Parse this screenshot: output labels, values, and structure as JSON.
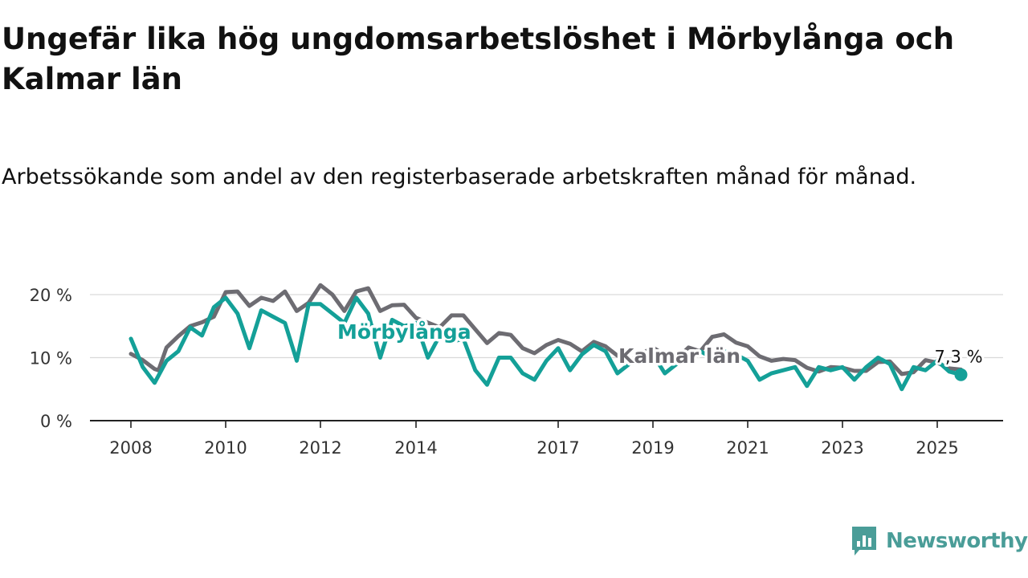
{
  "header": {
    "title": "Ungefär lika hög ungdomsarbetslöshet i Mörbylånga och Kalmar län",
    "subtitle": "Arbetssökande som andel av den registerbaserade arbetskraften månad för månad."
  },
  "brand": {
    "name": "Newsworthy",
    "icon": "newsworthy-logo-icon",
    "color": "#4a9d98"
  },
  "chart_data": {
    "type": "line",
    "xlabel": "",
    "ylabel": "",
    "x_start": "2008-01",
    "x_end": "2025-07",
    "ylim": [
      0,
      22
    ],
    "grid": true,
    "legend": "inline labels",
    "y_ticks": [
      {
        "value": 0,
        "label": "0 %"
      },
      {
        "value": 10,
        "label": "10 %"
      },
      {
        "value": 20,
        "label": "20 %"
      }
    ],
    "x_ticks": [
      {
        "year": 2008,
        "label": "2008"
      },
      {
        "year": 2010,
        "label": "2010"
      },
      {
        "year": 2012,
        "label": "2012"
      },
      {
        "year": 2014,
        "label": "2014"
      },
      {
        "year": 2017,
        "label": "2017"
      },
      {
        "year": 2019,
        "label": "2019"
      },
      {
        "year": 2021,
        "label": "2021"
      },
      {
        "year": 2023,
        "label": "2023"
      },
      {
        "year": 2025,
        "label": "2025"
      }
    ],
    "series": [
      {
        "name": "Kalmar län",
        "color": "#6d6c72",
        "points": [
          [
            "2008-01",
            10.6
          ],
          [
            "2008-04",
            9.6
          ],
          [
            "2008-07",
            8.2
          ],
          [
            "2008-08",
            8.0
          ],
          [
            "2008-10",
            11.6
          ],
          [
            "2009-01",
            13.4
          ],
          [
            "2009-04",
            15.0
          ],
          [
            "2009-07",
            15.6
          ],
          [
            "2009-10",
            16.5
          ],
          [
            "2010-01",
            20.4
          ],
          [
            "2010-04",
            20.5
          ],
          [
            "2010-07",
            18.2
          ],
          [
            "2010-10",
            19.5
          ],
          [
            "2011-01",
            19.0
          ],
          [
            "2011-04",
            20.5
          ],
          [
            "2011-07",
            17.4
          ],
          [
            "2011-10",
            18.7
          ],
          [
            "2012-01",
            21.5
          ],
          [
            "2012-04",
            20.0
          ],
          [
            "2012-07",
            17.4
          ],
          [
            "2012-10",
            20.5
          ],
          [
            "2013-01",
            21.0
          ],
          [
            "2013-04",
            17.4
          ],
          [
            "2013-07",
            18.3
          ],
          [
            "2013-10",
            18.4
          ],
          [
            "2014-01",
            16.3
          ],
          [
            "2014-07",
            14.8
          ],
          [
            "2014-10",
            16.7
          ],
          [
            "2015-01",
            16.7
          ],
          [
            "2015-04",
            14.5
          ],
          [
            "2015-07",
            12.3
          ],
          [
            "2015-10",
            13.9
          ],
          [
            "2016-01",
            13.6
          ],
          [
            "2016-04",
            11.5
          ],
          [
            "2016-07",
            10.7
          ],
          [
            "2016-10",
            12.0
          ],
          [
            "2017-01",
            12.8
          ],
          [
            "2017-04",
            12.2
          ],
          [
            "2017-07",
            11.0
          ],
          [
            "2017-10",
            12.5
          ],
          [
            "2018-01",
            11.8
          ],
          [
            "2018-04",
            10.3
          ],
          [
            "2018-07",
            9.5
          ],
          [
            "2018-10",
            10.6
          ],
          [
            "2019-01",
            11.6
          ],
          [
            "2019-04",
            10.4
          ],
          [
            "2019-07",
            9.8
          ],
          [
            "2019-10",
            11.6
          ],
          [
            "2020-01",
            11.0
          ],
          [
            "2020-04",
            13.3
          ],
          [
            "2020-07",
            13.7
          ],
          [
            "2020-10",
            12.4
          ],
          [
            "2021-01",
            11.8
          ],
          [
            "2021-04",
            10.2
          ],
          [
            "2021-07",
            9.5
          ],
          [
            "2021-10",
            9.8
          ],
          [
            "2022-01",
            9.6
          ],
          [
            "2022-04",
            8.4
          ],
          [
            "2022-07",
            7.8
          ],
          [
            "2022-10",
            8.5
          ],
          [
            "2023-01",
            8.4
          ],
          [
            "2023-04",
            7.9
          ],
          [
            "2023-07",
            7.9
          ],
          [
            "2023-10",
            9.3
          ],
          [
            "2024-01",
            9.4
          ],
          [
            "2024-04",
            7.4
          ],
          [
            "2024-07",
            7.7
          ],
          [
            "2024-10",
            9.6
          ],
          [
            "2025-01",
            9.2
          ],
          [
            "2025-04",
            8.3
          ],
          [
            "2025-07",
            8.1
          ]
        ]
      },
      {
        "name": "Mörbylånga",
        "color": "#14a098",
        "points": [
          [
            "2008-01",
            13.0
          ],
          [
            "2008-04",
            8.5
          ],
          [
            "2008-07",
            6.0
          ],
          [
            "2008-10",
            9.5
          ],
          [
            "2009-01",
            11.0
          ],
          [
            "2009-04",
            14.8
          ],
          [
            "2009-07",
            13.5
          ],
          [
            "2009-10",
            18.0
          ],
          [
            "2010-01",
            19.5
          ],
          [
            "2010-04",
            17.0
          ],
          [
            "2010-07",
            11.5
          ],
          [
            "2010-10",
            17.5
          ],
          [
            "2011-01",
            16.5
          ],
          [
            "2011-04",
            15.5
          ],
          [
            "2011-07",
            9.5
          ],
          [
            "2011-10",
            18.5
          ],
          [
            "2012-01",
            18.5
          ],
          [
            "2012-04",
            17.0
          ],
          [
            "2012-07",
            15.5
          ],
          [
            "2012-10",
            19.5
          ],
          [
            "2013-01",
            17.0
          ],
          [
            "2013-04",
            10.0
          ],
          [
            "2013-07",
            16.0
          ],
          [
            "2013-10",
            15.0
          ],
          [
            "2014-01",
            15.5
          ],
          [
            "2014-04",
            10.0
          ],
          [
            "2014-07",
            13.5
          ],
          [
            "2014-10",
            12.5
          ],
          [
            "2015-01",
            13.0
          ],
          [
            "2015-04",
            8.0
          ],
          [
            "2015-07",
            5.7
          ],
          [
            "2015-10",
            10.0
          ],
          [
            "2016-01",
            10.0
          ],
          [
            "2016-04",
            7.5
          ],
          [
            "2016-07",
            6.5
          ],
          [
            "2016-10",
            9.5
          ],
          [
            "2017-01",
            11.5
          ],
          [
            "2017-04",
            8.0
          ],
          [
            "2017-07",
            10.5
          ],
          [
            "2017-10",
            12.0
          ],
          [
            "2018-01",
            11.0
          ],
          [
            "2018-04",
            7.5
          ],
          [
            "2018-07",
            9.0
          ],
          [
            "2018-10",
            10.0
          ],
          [
            "2019-01",
            10.5
          ],
          [
            "2019-04",
            7.5
          ],
          [
            "2019-07",
            9.0
          ],
          [
            "2019-10",
            10.5
          ],
          [
            "2020-01",
            11.0
          ],
          [
            "2020-04",
            10.0
          ],
          [
            "2020-07",
            11.0
          ],
          [
            "2020-10",
            10.5
          ],
          [
            "2021-01",
            9.5
          ],
          [
            "2021-04",
            6.5
          ],
          [
            "2021-07",
            7.5
          ],
          [
            "2021-10",
            8.0
          ],
          [
            "2022-01",
            8.5
          ],
          [
            "2022-04",
            5.5
          ],
          [
            "2022-07",
            8.5
          ],
          [
            "2022-10",
            8.0
          ],
          [
            "2023-01",
            8.5
          ],
          [
            "2023-04",
            6.5
          ],
          [
            "2023-07",
            8.5
          ],
          [
            "2023-10",
            10.0
          ],
          [
            "2024-01",
            9.0
          ],
          [
            "2024-04",
            5.0
          ],
          [
            "2024-07",
            8.5
          ],
          [
            "2024-10",
            8.0
          ],
          [
            "2025-01",
            9.5
          ],
          [
            "2025-04",
            7.8
          ],
          [
            "2025-07",
            7.3
          ]
        ]
      }
    ],
    "annotations": {
      "last_value_label": "7,3 %"
    }
  }
}
